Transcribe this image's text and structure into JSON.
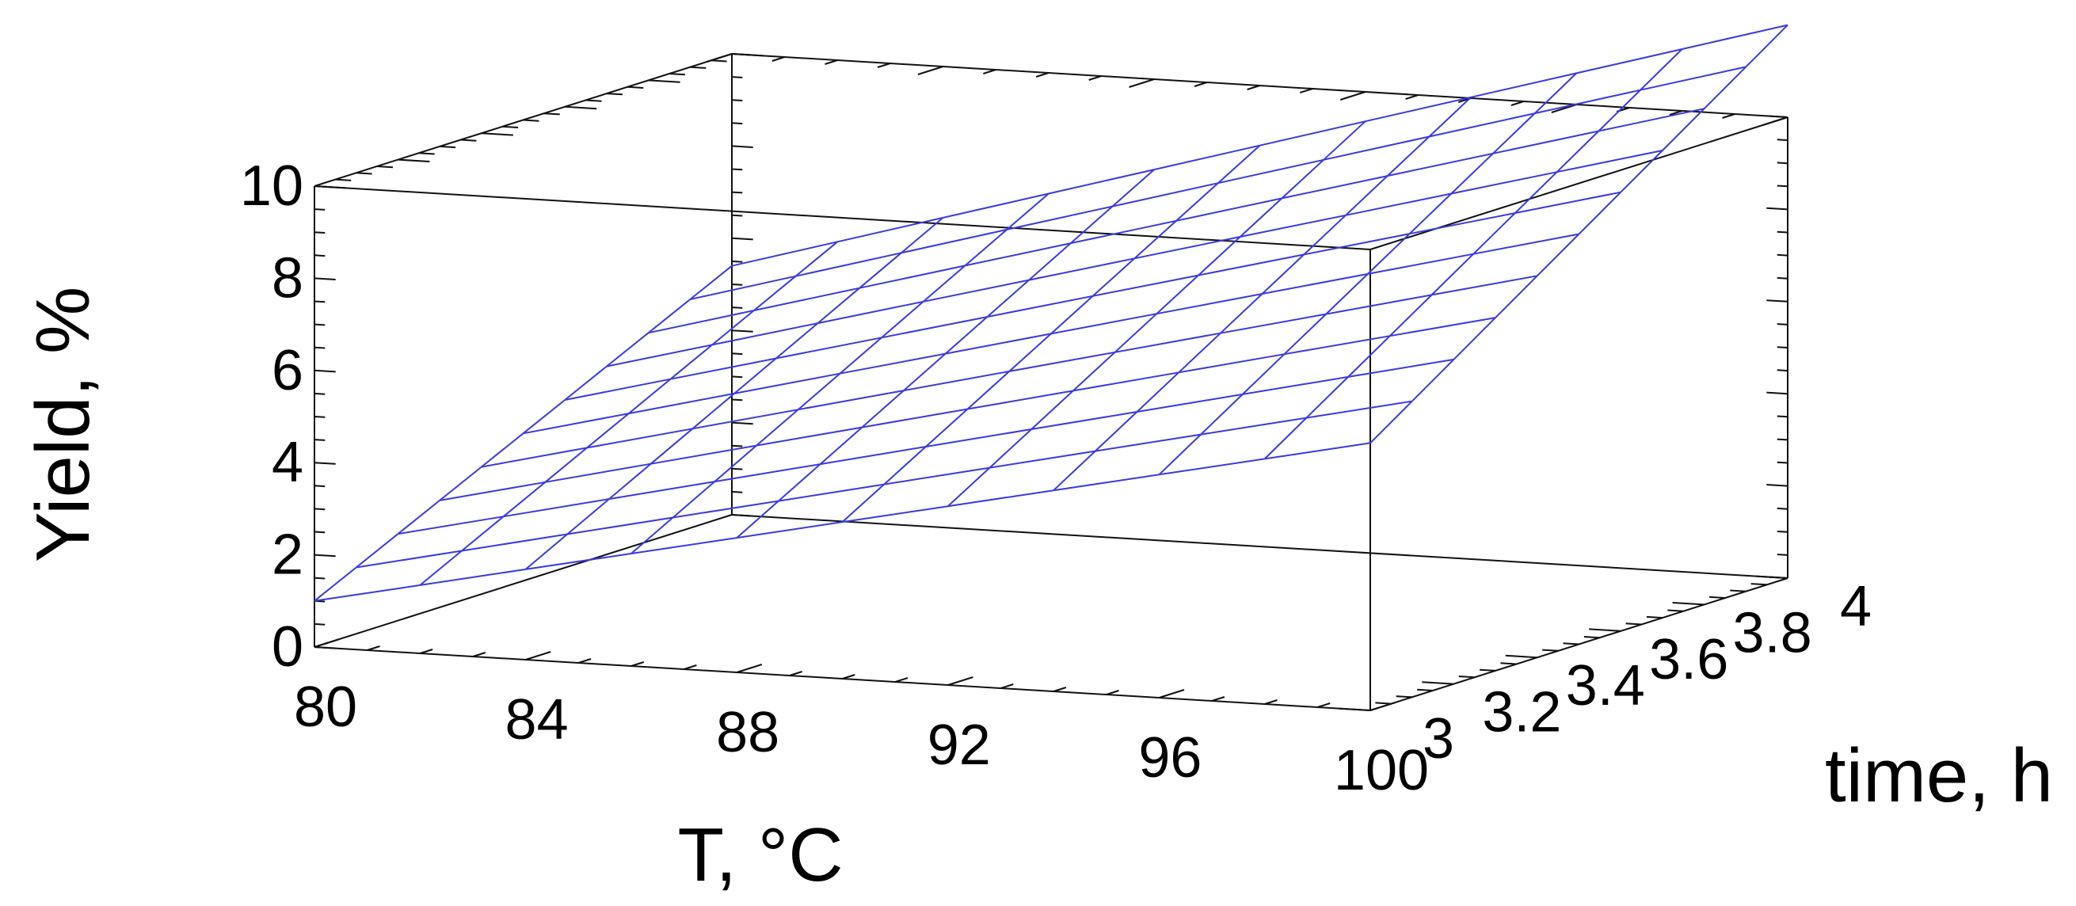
{
  "chart_data": {
    "type": "surface3d",
    "x_axis": {
      "title": "T, °C",
      "ticks": [
        "80",
        "84",
        "88",
        "92",
        "96",
        "100"
      ],
      "tick_values": [
        80,
        84,
        88,
        92,
        96,
        100
      ],
      "range": [
        80,
        100
      ]
    },
    "y_axis": {
      "title": "time, h",
      "ticks": [
        "3",
        "3.2",
        "3.4",
        "3.6",
        "3.8",
        "4"
      ],
      "tick_values": [
        3,
        3.2,
        3.4,
        3.6,
        3.8,
        4
      ],
      "range": [
        3,
        4
      ]
    },
    "z_axis": {
      "title": "Yield, %",
      "ticks": [
        "0",
        "2",
        "4",
        "6",
        "8",
        "10"
      ],
      "tick_values": [
        0,
        2,
        4,
        6,
        8,
        10
      ],
      "range": [
        0,
        10
      ]
    },
    "grid": false,
    "surface": {
      "color": "#3a3ae0",
      "x": [
        80,
        82,
        84,
        86,
        88,
        90,
        92,
        94,
        96,
        98,
        100
      ],
      "y": [
        3,
        3.1,
        3.2,
        3.3,
        3.4,
        3.5,
        3.6,
        3.7,
        3.8,
        3.9,
        4
      ],
      "corner_values": {
        "T80_t3": 1.0,
        "T100_t3": 5.8,
        "T80_t4": 5.4,
        "T100_t4": 12.0
      }
    }
  }
}
